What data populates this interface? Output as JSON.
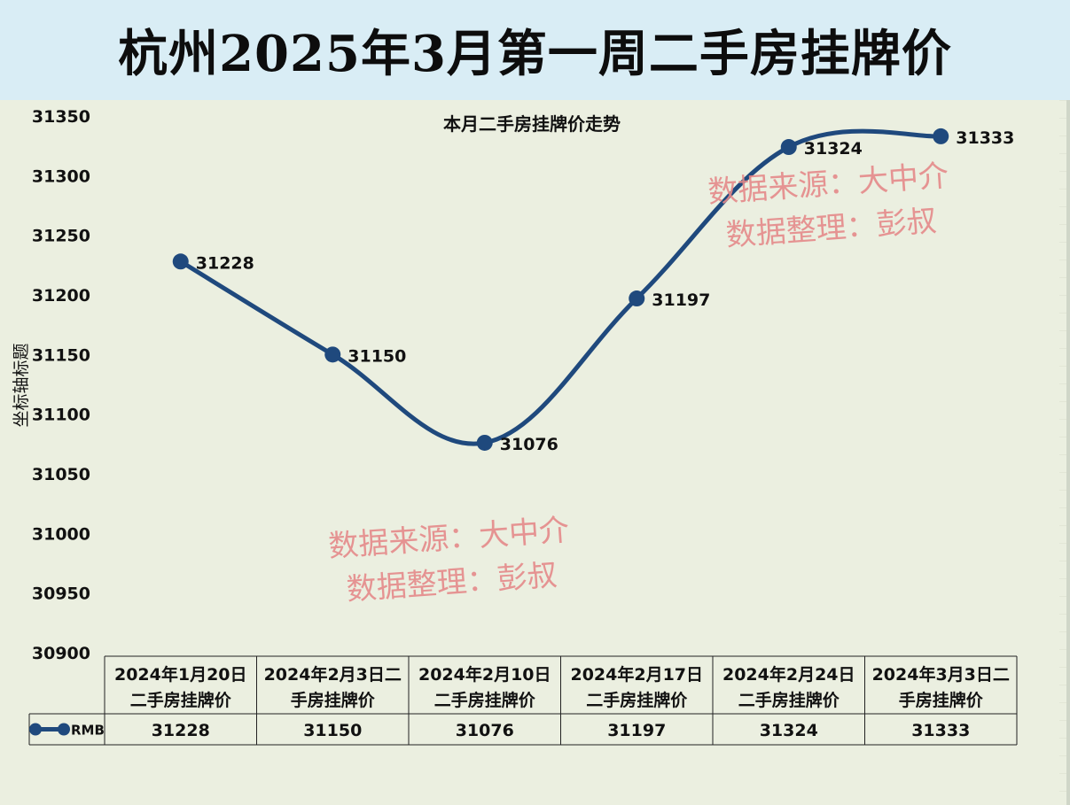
{
  "page_title": "杭州2025年3月第一周二手房挂牌价",
  "chart_data": {
    "type": "line",
    "title": "本月二手房挂牌价走势",
    "ylabel": "坐标轴标题",
    "ylim": [
      30900,
      31350
    ],
    "yticks": [
      31350,
      31300,
      31250,
      31200,
      31150,
      31100,
      31050,
      31000,
      30950,
      30900
    ],
    "categories": [
      "2024年1月20日二手房挂牌价",
      "2024年2月3日二手房挂牌价",
      "2024年2月10日二手房挂牌价",
      "2024年2月17日二手房挂牌价",
      "2024年2月24日二手房挂牌价",
      "2024年3月3日二手房挂牌价"
    ],
    "category_lines": [
      [
        "2024年1月20日",
        "二手房挂牌价"
      ],
      [
        "2024年2月3日二",
        "手房挂牌价"
      ],
      [
        "2024年2月10日",
        "二手房挂牌价"
      ],
      [
        "2024年2月17日",
        "二手房挂牌价"
      ],
      [
        "2024年2月24日",
        "二手房挂牌价"
      ],
      [
        "2024年3月3日二",
        "手房挂牌价"
      ]
    ],
    "series": [
      {
        "name": "RMB",
        "values": [
          31228,
          31150,
          31076,
          31197,
          31324,
          31333
        ]
      }
    ],
    "data_labels": [
      "31228",
      "31150",
      "31076",
      "31197",
      "31324",
      "31333"
    ],
    "legend": "data-table",
    "grid": false,
    "colors": {
      "series": "#1f497d",
      "background": "#ebefe0",
      "header": "#d9edf5"
    }
  },
  "watermarks": [
    {
      "line1": "数据来源：大中介",
      "line2": "数据整理：彭叔"
    },
    {
      "line1": "数据来源：大中介",
      "line2": "数据整理：彭叔"
    }
  ]
}
